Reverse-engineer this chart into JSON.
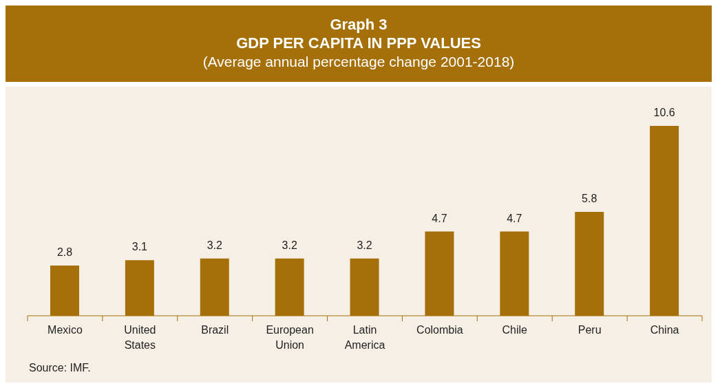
{
  "chart_data": {
    "type": "bar",
    "title": "Graph 3\nGDP PER CAPITA IN PPP VALUES",
    "subtitle": "(Average annual percentage change 2001-2018)",
    "categories": [
      "Mexico",
      "United States",
      "Brazil",
      "European Union",
      "Latin America",
      "Colombia",
      "Chile",
      "Peru",
      "China"
    ],
    "values": [
      2.8,
      3.1,
      3.2,
      3.2,
      3.2,
      4.7,
      4.7,
      5.8,
      10.6
    ],
    "color": "#a57009",
    "data_labels": true,
    "annotations": [
      "Source: IMF."
    ]
  }
}
